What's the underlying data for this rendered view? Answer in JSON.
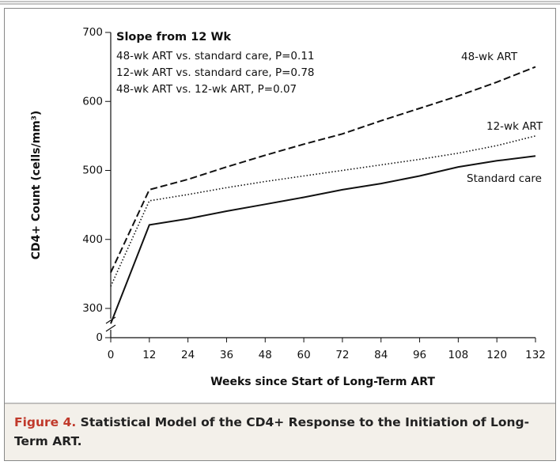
{
  "chart_data": {
    "type": "line",
    "x_label": "Weeks since Start of Long-Term ART",
    "y_label": "CD4+ Count (cells/mm³)",
    "annotation": {
      "title": "Slope from 12 Wk",
      "lines": [
        "48-wk ART vs. standard care, P=0.11",
        "12-wk ART vs. standard care, P=0.78",
        "48-wk ART vs. 12-wk ART, P=0.07"
      ]
    },
    "x": [
      0,
      12,
      24,
      36,
      48,
      60,
      72,
      84,
      96,
      108,
      120,
      132
    ],
    "series": [
      {
        "name": "48-wk ART",
        "color": "#111111",
        "dash": "dashed",
        "values": [
          352,
          472,
          487,
          505,
          522,
          538,
          553,
          572,
          590,
          608,
          628,
          650
        ]
      },
      {
        "name": "12-wk ART",
        "color": "#111111",
        "dash": "dotted",
        "values": [
          332,
          456,
          465,
          475,
          484,
          492,
          500,
          508,
          516,
          525,
          536,
          550
        ]
      },
      {
        "name": "Standard care",
        "color": "#111111",
        "dash": "solid",
        "values": [
          278,
          421,
          430,
          441,
          451,
          461,
          472,
          481,
          492,
          505,
          514,
          521
        ]
      }
    ],
    "xlim": [
      0,
      132
    ],
    "xticks": [
      0,
      12,
      24,
      36,
      48,
      60,
      72,
      84,
      96,
      108,
      120,
      132
    ],
    "ylim": [
      0,
      700
    ],
    "yticks": [
      0,
      300,
      400,
      500,
      600,
      700
    ],
    "y_axis_break": true
  },
  "figure": {
    "label": "Figure 4.",
    "text": "Statistical Model of the CD4+ Response to the Initiation of Long-Term ART."
  }
}
